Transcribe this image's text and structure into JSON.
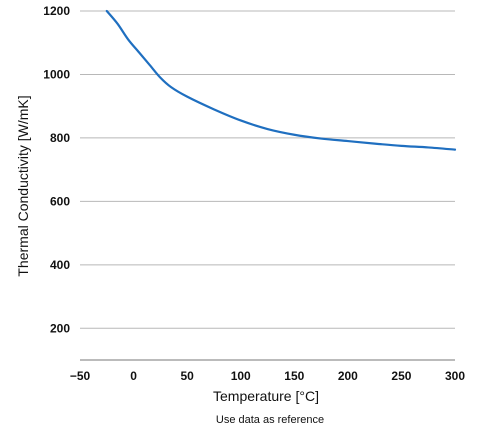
{
  "chart_data": {
    "type": "line",
    "xlabel": "Temperature [°C]",
    "ylabel": "Thermal Conductivity  [W/mK]",
    "xlim": [
      -50,
      300
    ],
    "ylim": [
      100,
      1200
    ],
    "x_ticks": [
      -50,
      0,
      50,
      100,
      150,
      200,
      250,
      300
    ],
    "x_tick_labels": [
      "−50",
      "0",
      "50",
      "100",
      "150",
      "200",
      "250",
      "300"
    ],
    "y_ticks": [
      200,
      400,
      600,
      800,
      1000,
      1200
    ],
    "y_tick_labels": [
      "200",
      "400",
      "600",
      "800",
      "1000",
      "1200"
    ],
    "grid": "horizontal",
    "line_color": "#1f6fc0",
    "series": [
      {
        "x": [
          -25,
          -15,
          -5,
          5,
          15,
          25,
          35,
          50,
          75,
          100,
          125,
          150,
          175,
          200,
          225,
          250,
          275,
          300
        ],
        "y": [
          1200,
          1160,
          1110,
          1070,
          1030,
          990,
          960,
          930,
          890,
          855,
          828,
          810,
          798,
          790,
          782,
          775,
          770,
          763
        ]
      }
    ],
    "note": "Use data as reference"
  }
}
